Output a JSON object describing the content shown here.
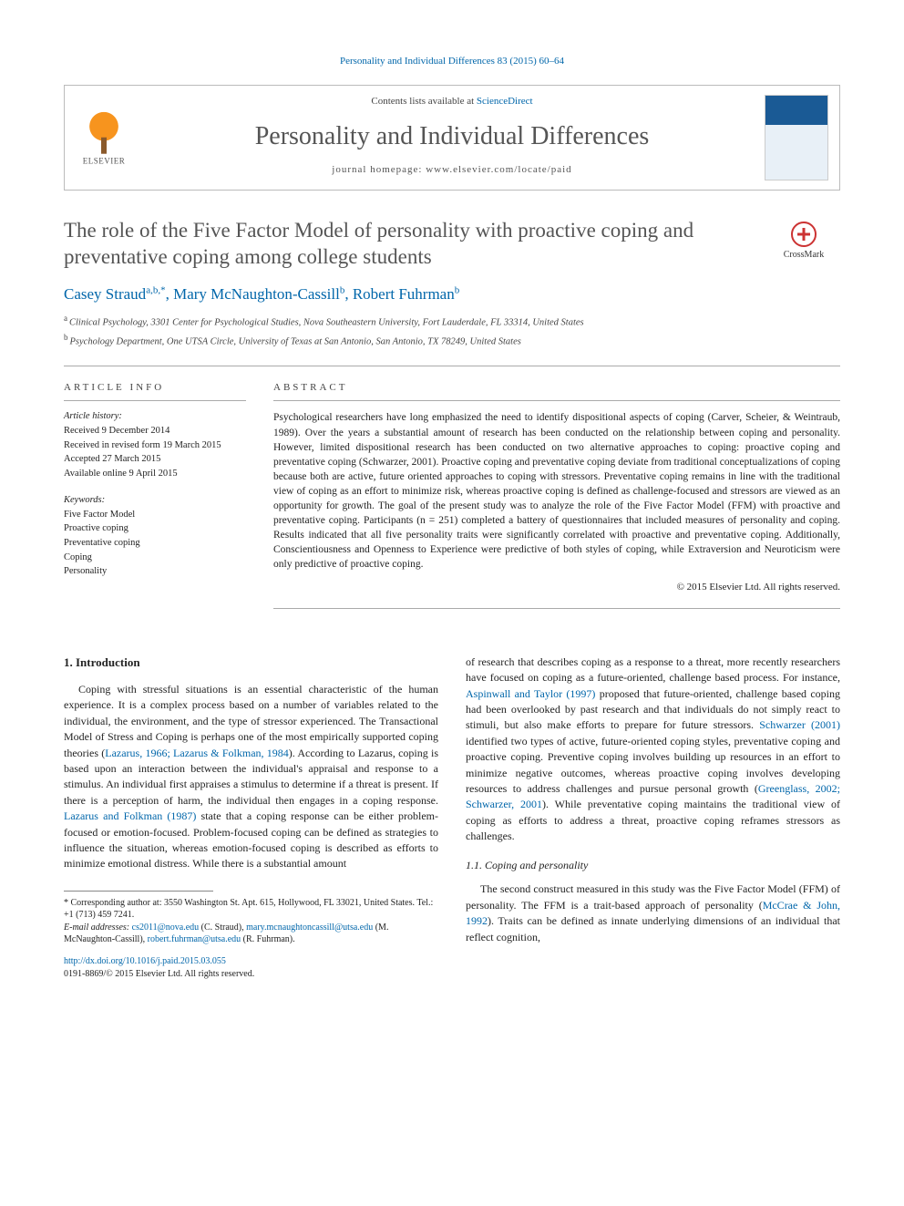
{
  "citation_header": "Personality and Individual Differences 83 (2015) 60–64",
  "header": {
    "contents_prefix": "Contents lists available at ",
    "contents_link": "ScienceDirect",
    "journal_title": "Personality and Individual Differences",
    "homepage_label": "journal homepage: www.elsevier.com/locate/paid",
    "publisher": "ELSEVIER"
  },
  "crossmark": "CrossMark",
  "title": "The role of the Five Factor Model of personality with proactive coping and preventative coping among college students",
  "authors_html": {
    "a1_name": "Casey Straud",
    "a1_sup": "a,b,*",
    "sep1": ", ",
    "a2_name": "Mary McNaughton-Cassill",
    "a2_sup": "b",
    "sep2": ", ",
    "a3_name": "Robert Fuhrman",
    "a3_sup": "b"
  },
  "affiliations": {
    "a": "Clinical Psychology, 3301 Center for Psychological Studies, Nova Southeastern University, Fort Lauderdale, FL 33314, United States",
    "b": "Psychology Department, One UTSA Circle, University of Texas at San Antonio, San Antonio, TX 78249, United States"
  },
  "info": {
    "heading": "ARTICLE INFO",
    "history_label": "Article history:",
    "history": [
      "Received 9 December 2014",
      "Received in revised form 19 March 2015",
      "Accepted 27 March 2015",
      "Available online 9 April 2015"
    ],
    "keywords_label": "Keywords:",
    "keywords": [
      "Five Factor Model",
      "Proactive coping",
      "Preventative coping",
      "Coping",
      "Personality"
    ]
  },
  "abstract": {
    "heading": "ABSTRACT",
    "text": "Psychological researchers have long emphasized the need to identify dispositional aspects of coping (Carver, Scheier, & Weintraub, 1989). Over the years a substantial amount of research has been conducted on the relationship between coping and personality. However, limited dispositional research has been conducted on two alternative approaches to coping: proactive coping and preventative coping (Schwarzer, 2001). Proactive coping and preventative coping deviate from traditional conceptualizations of coping because both are active, future oriented approaches to coping with stressors. Preventative coping remains in line with the traditional view of coping as an effort to minimize risk, whereas proactive coping is defined as challenge-focused and stressors are viewed as an opportunity for growth. The goal of the present study was to analyze the role of the Five Factor Model (FFM) with proactive and preventative coping. Participants (n = 251) completed a battery of questionnaires that included measures of personality and coping. Results indicated that all five personality traits were significantly correlated with proactive and preventative coping. Additionally, Conscientiousness and Openness to Experience were predictive of both styles of coping, while Extraversion and Neuroticism were only predictive of proactive coping.",
    "copyright": "© 2015 Elsevier Ltd. All rights reserved."
  },
  "body": {
    "sec1_heading": "1. Introduction",
    "p1_a": "Coping with stressful situations is an essential characteristic of the human experience. It is a complex process based on a number of variables related to the individual, the environment, and the type of stressor experienced. The Transactional Model of Stress and Coping is perhaps one of the most empirically supported coping theories (",
    "p1_cite1": "Lazarus, 1966; Lazarus & Folkman, 1984",
    "p1_b": "). According to Lazarus, coping is based upon an interaction between the individual's appraisal and response to a stimulus. An individual first appraises a stimulus to determine if a threat is present. If there is a perception of harm, the individual then engages in a coping response. ",
    "p1_cite2": "Lazarus and Folkman (1987)",
    "p1_c": " state that a coping response can be either problem-focused or emotion-focused. Problem-focused coping can be defined as strategies to influence the situation, whereas emotion-focused coping is described as efforts to minimize emotional distress. While there is a substantial amount",
    "p2_a": "of research that describes coping as a response to a threat, more recently researchers have focused on coping as a future-oriented, challenge based process. For instance, ",
    "p2_cite1": "Aspinwall and Taylor (1997)",
    "p2_b": " proposed that future-oriented, challenge based coping had been overlooked by past research and that individuals do not simply react to stimuli, but also make efforts to prepare for future stressors. ",
    "p2_cite2": "Schwarzer (2001)",
    "p2_c": " identified two types of active, future-oriented coping styles, preventative coping and proactive coping. Preventive coping involves building up resources in an effort to minimize negative outcomes, whereas proactive coping involves developing resources to address challenges and pursue personal growth (",
    "p2_cite3": "Greenglass, 2002; Schwarzer, 2001",
    "p2_d": "). While preventative coping maintains the traditional view of coping as efforts to address a threat, proactive coping reframes stressors as challenges.",
    "sec11_heading": "1.1. Coping and personality",
    "p3_a": "The second construct measured in this study was the Five Factor Model (FFM) of personality. The FFM is a trait-based approach of personality (",
    "p3_cite1": "McCrae & John, 1992",
    "p3_b": "). Traits can be defined as innate underlying dimensions of an individual that reflect cognition,"
  },
  "footnote": {
    "corr_label": "* Corresponding author at: 3550 Washington St. Apt. 615, Hollywood, FL 33021, United States. Tel.: +1 (713) 459 7241.",
    "email_label": "E-mail addresses: ",
    "e1": "cs2011@nova.edu",
    "e1_name": " (C. Straud), ",
    "e2": "mary.mcnaughtoncassill@utsa.edu",
    "e2_name": " (M. McNaughton-Cassill), ",
    "e3": "robert.fuhrman@utsa.edu",
    "e3_name": " (R. Fuhrman)."
  },
  "doi": {
    "link": "http://dx.doi.org/10.1016/j.paid.2015.03.055",
    "issn": "0191-8869/© 2015 Elsevier Ltd. All rights reserved."
  },
  "colors": {
    "link": "#0066aa",
    "accent": "#f7941e",
    "text": "#222222",
    "muted": "#555555",
    "rule": "#aaaaaa"
  }
}
